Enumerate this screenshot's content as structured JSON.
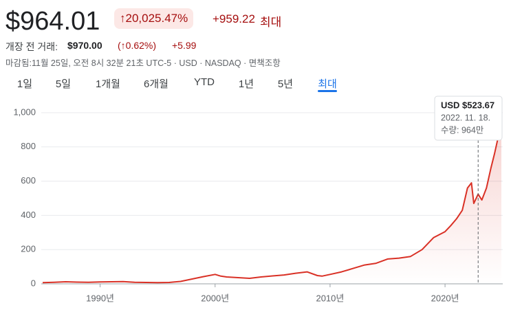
{
  "header": {
    "price": "$964.01",
    "change_pct": "↑20,025.47%",
    "change": "+959.22",
    "period": "최대",
    "premarket_label": "개장 전 거래:",
    "premarket_price": "$970.00",
    "premarket_pct": "(↑0.62%)",
    "premarket_change": "+5.99",
    "status": "마감됨:11월 25일, 오전 8시 32분 21초 UTC-5 · USD · NASDAQ · 면책조항"
  },
  "tabs": {
    "items": [
      "1일",
      "5일",
      "1개월",
      "6개월",
      "YTD",
      "1년",
      "5년",
      "최대"
    ],
    "selected": "최대"
  },
  "chart_data": {
    "type": "line",
    "color": "#d93025",
    "x": [
      1985,
      1986,
      1987,
      1988,
      1989,
      1990,
      1991,
      1992,
      1993,
      1994,
      1995,
      1996,
      1997,
      1998,
      1999,
      2000,
      2000.5,
      2001,
      2002,
      2003,
      2004,
      2005,
      2006,
      2007,
      2008,
      2008.9,
      2009.3,
      2010,
      2011,
      2012,
      2013,
      2014,
      2015,
      2016,
      2017,
      2018,
      2019,
      2020,
      2020.5,
      2021,
      2021.5,
      2021.95,
      2022.3,
      2022.5,
      2022.88,
      2023.2,
      2023.6,
      2024,
      2024.3,
      2024.6,
      2024.9
    ],
    "values": [
      7,
      9,
      12,
      10,
      9,
      11,
      12,
      13,
      9,
      8,
      7,
      8,
      14,
      28,
      42,
      55,
      45,
      40,
      36,
      32,
      40,
      46,
      52,
      62,
      70,
      48,
      45,
      55,
      70,
      90,
      110,
      120,
      145,
      150,
      160,
      200,
      270,
      305,
      340,
      380,
      430,
      560,
      590,
      470,
      523.67,
      490,
      560,
      680,
      760,
      850,
      964
    ],
    "xlim": [
      1985,
      2024.9
    ],
    "ylim": [
      0,
      1000
    ],
    "xticks": [
      {
        "value": 1990,
        "label": "1990년"
      },
      {
        "value": 2000,
        "label": "2000년"
      },
      {
        "value": 2010,
        "label": "2010년"
      },
      {
        "value": 2020,
        "label": "2020년"
      }
    ],
    "yticks": [
      0,
      200,
      400,
      600,
      800,
      {
        "value": 1000,
        "label": "1,000"
      }
    ],
    "grid": true,
    "hover": {
      "x": 2022.88,
      "label": "USD $523.67",
      "date": "2022. 11. 18.",
      "volume": "수량: 964만"
    }
  }
}
